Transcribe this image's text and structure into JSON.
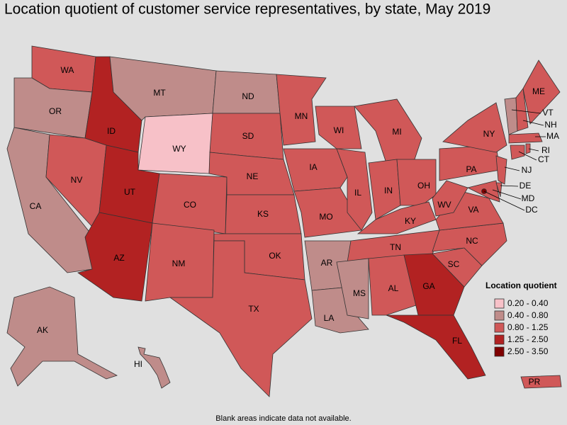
{
  "title": "Location quotient of customer service representatives, by state, May 2019",
  "legend": {
    "title": "Location quotient",
    "items": [
      {
        "label": "0.20 - 0.40",
        "color": "#f7c1c8"
      },
      {
        "label": "0.40 - 0.80",
        "color": "#bf8c8a"
      },
      {
        "label": "0.80 - 1.25",
        "color": "#d05858"
      },
      {
        "label": "1.25 - 2.50",
        "color": "#b22222"
      },
      {
        "label": "2.50 - 3.50",
        "color": "#7f0000"
      }
    ]
  },
  "states": [
    {
      "abbr": "WA",
      "class": 2
    },
    {
      "abbr": "OR",
      "class": 1
    },
    {
      "abbr": "CA",
      "class": 1
    },
    {
      "abbr": "NV",
      "class": 2
    },
    {
      "abbr": "ID",
      "class": 3
    },
    {
      "abbr": "MT",
      "class": 1
    },
    {
      "abbr": "WY",
      "class": 0
    },
    {
      "abbr": "UT",
      "class": 3
    },
    {
      "abbr": "AZ",
      "class": 3
    },
    {
      "abbr": "CO",
      "class": 2
    },
    {
      "abbr": "NM",
      "class": 2
    },
    {
      "abbr": "ND",
      "class": 1
    },
    {
      "abbr": "SD",
      "class": 2
    },
    {
      "abbr": "NE",
      "class": 2
    },
    {
      "abbr": "KS",
      "class": 2
    },
    {
      "abbr": "OK",
      "class": 2
    },
    {
      "abbr": "TX",
      "class": 2
    },
    {
      "abbr": "MN",
      "class": 2
    },
    {
      "abbr": "IA",
      "class": 2
    },
    {
      "abbr": "MO",
      "class": 2
    },
    {
      "abbr": "AR",
      "class": 1
    },
    {
      "abbr": "LA",
      "class": 1
    },
    {
      "abbr": "WI",
      "class": 2
    },
    {
      "abbr": "IL",
      "class": 2
    },
    {
      "abbr": "MI",
      "class": 2
    },
    {
      "abbr": "IN",
      "class": 2
    },
    {
      "abbr": "OH",
      "class": 2
    },
    {
      "abbr": "KY",
      "class": 2
    },
    {
      "abbr": "TN",
      "class": 2
    },
    {
      "abbr": "MS",
      "class": 1
    },
    {
      "abbr": "AL",
      "class": 2
    },
    {
      "abbr": "GA",
      "class": 3
    },
    {
      "abbr": "FL",
      "class": 3
    },
    {
      "abbr": "SC",
      "class": 2
    },
    {
      "abbr": "NC",
      "class": 2
    },
    {
      "abbr": "VA",
      "class": 2
    },
    {
      "abbr": "WV",
      "class": 2
    },
    {
      "abbr": "PA",
      "class": 2
    },
    {
      "abbr": "NY",
      "class": 2
    },
    {
      "abbr": "MD",
      "class": 2
    },
    {
      "abbr": "DE",
      "class": 2
    },
    {
      "abbr": "NJ",
      "class": 2
    },
    {
      "abbr": "CT",
      "class": 2
    },
    {
      "abbr": "RI",
      "class": 2
    },
    {
      "abbr": "MA",
      "class": 2
    },
    {
      "abbr": "VT",
      "class": 1
    },
    {
      "abbr": "NH",
      "class": 2
    },
    {
      "abbr": "ME",
      "class": 2
    },
    {
      "abbr": "AK",
      "class": 1
    },
    {
      "abbr": "HI",
      "class": 1
    },
    {
      "abbr": "PR",
      "class": 2
    },
    {
      "abbr": "DC",
      "class": 4
    }
  ],
  "footnote": "Blank areas indicate data not available."
}
